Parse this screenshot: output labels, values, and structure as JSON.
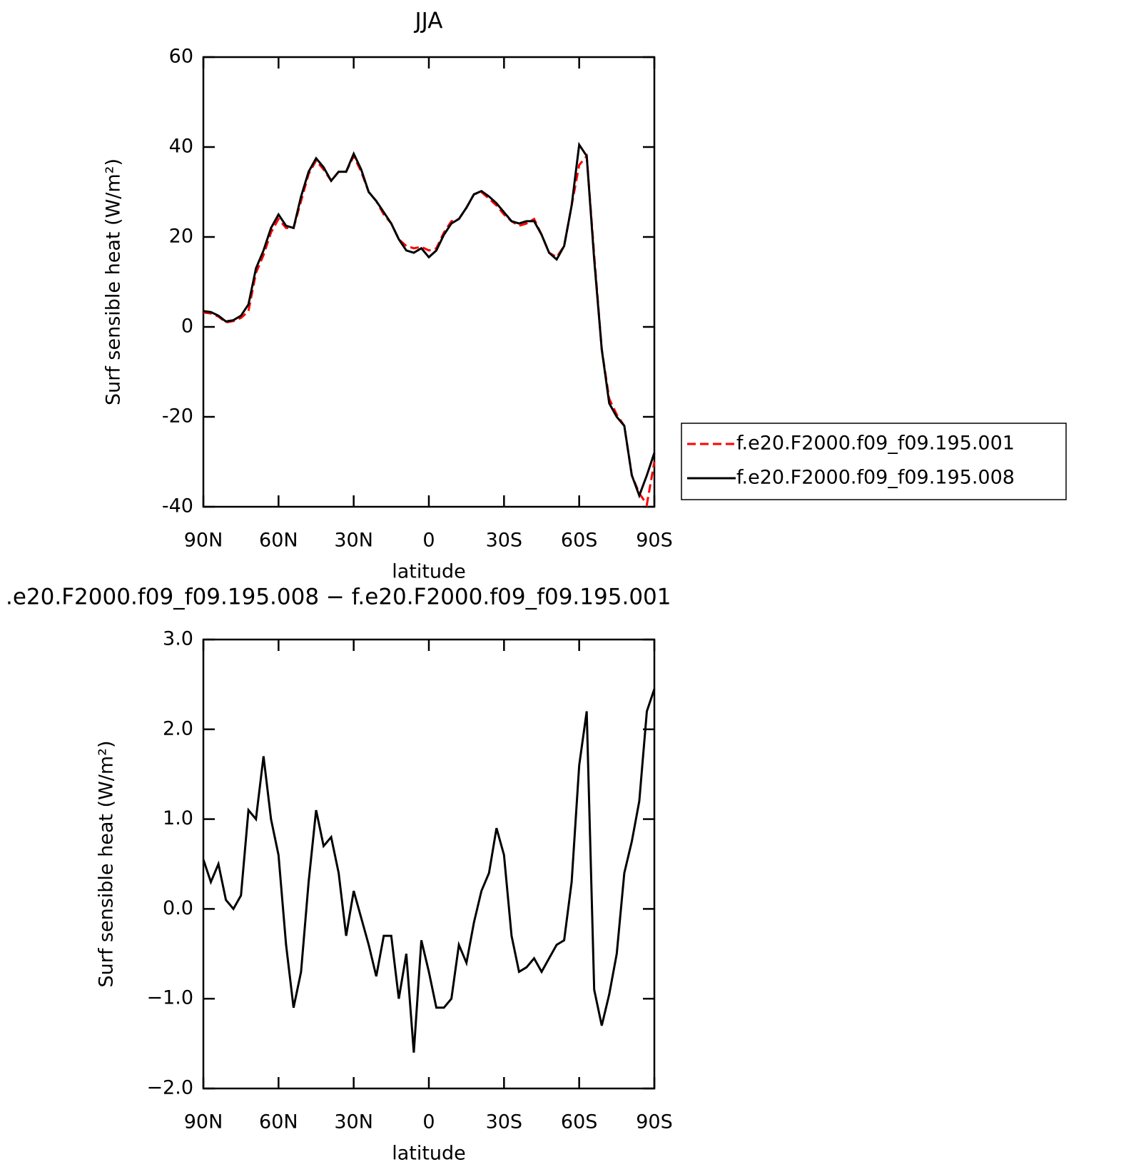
{
  "chart_data": [
    {
      "type": "line",
      "title": "JJA",
      "x_label": "latitude",
      "y_label": "Surf sensible heat (W/m²)",
      "x": [
        90,
        87,
        84,
        81,
        78,
        75,
        72,
        69,
        66,
        63,
        60,
        57,
        54,
        51,
        48,
        45,
        42,
        39,
        36,
        33,
        30,
        27,
        24,
        21,
        18,
        15,
        12,
        9,
        6,
        3,
        0,
        -3,
        -6,
        -9,
        -12,
        -15,
        -18,
        -21,
        -24,
        -27,
        -30,
        -33,
        -36,
        -39,
        -42,
        -45,
        -48,
        -51,
        -54,
        -57,
        -60,
        -63,
        -66,
        -69,
        -72,
        -75,
        -78,
        -81,
        -84,
        -87,
        -90
      ],
      "xlim": [
        90,
        -90
      ],
      "xticks": [
        {
          "value": 90,
          "label": "90N"
        },
        {
          "value": 60,
          "label": "60N"
        },
        {
          "value": 30,
          "label": "30N"
        },
        0,
        {
          "value": -30,
          "label": "30S"
        },
        {
          "value": -60,
          "label": "60S"
        },
        {
          "value": -90,
          "label": "90S"
        }
      ],
      "ylim": [
        -40,
        60
      ],
      "yticks": [
        -40,
        -20,
        0,
        20,
        40,
        60
      ],
      "legend": "right",
      "series": [
        {
          "name": "f.e20.F2000.f09_f09.195.001",
          "color": "#ff0000",
          "dash": true,
          "values": [
            3.2,
            3.0,
            2.3,
            1.0,
            1.3,
            2.0,
            3.5,
            12,
            16,
            21,
            24,
            22,
            22,
            28,
            34,
            37,
            35,
            32.5,
            34.5,
            34.5,
            38,
            34.5,
            30,
            28,
            25,
            23,
            19.5,
            18,
            17.5,
            17.8,
            17,
            17.5,
            21,
            23.5,
            24,
            26.5,
            29.5,
            30,
            28.5,
            27,
            25,
            23.5,
            22.5,
            23,
            24,
            20.5,
            16.5,
            15.5,
            18,
            27,
            36,
            38,
            16,
            -5,
            -16,
            -19.5,
            -22,
            -33,
            -37,
            -39.5,
            -30
          ]
        },
        {
          "name": "f.e20.F2000.f09_f09.195.008",
          "color": "#000000",
          "dash": false,
          "values": [
            3.5,
            3.3,
            2.5,
            1.2,
            1.5,
            2.5,
            5,
            13,
            17,
            22,
            25,
            22.5,
            22,
            29,
            34.5,
            37.5,
            35.5,
            32.5,
            34.5,
            34.5,
            38.5,
            35,
            30,
            28,
            25.5,
            23,
            19.5,
            17,
            16.5,
            17.5,
            15.5,
            17,
            20.5,
            23,
            24,
            26.5,
            29.5,
            30.2,
            29,
            27.5,
            25.5,
            23.5,
            23,
            23.5,
            23.5,
            20.5,
            16.5,
            15,
            18,
            27,
            40.5,
            38,
            15,
            -5,
            -17,
            -20,
            -22,
            -33,
            -37.5,
            -33,
            -28
          ]
        }
      ]
    },
    {
      "type": "line",
      "title": ".e20.F2000.f09_f09.195.008 − f.e20.F2000.f09_f09.195.001",
      "x_label": "latitude",
      "y_label": "Surf sensible heat (W/m²)",
      "x": [
        90,
        87,
        84,
        81,
        78,
        75,
        72,
        69,
        66,
        63,
        60,
        57,
        54,
        51,
        48,
        45,
        42,
        39,
        36,
        33,
        30,
        27,
        24,
        21,
        18,
        15,
        12,
        9,
        6,
        3,
        0,
        -3,
        -6,
        -9,
        -12,
        -15,
        -18,
        -21,
        -24,
        -27,
        -30,
        -33,
        -36,
        -39,
        -42,
        -45,
        -48,
        -51,
        -54,
        -57,
        -60,
        -63,
        -66,
        -69,
        -72,
        -75,
        -78,
        -81,
        -84,
        -87,
        -90
      ],
      "xlim": [
        90,
        -90
      ],
      "xticks": [
        {
          "value": 90,
          "label": "90N"
        },
        {
          "value": 60,
          "label": "60N"
        },
        {
          "value": 30,
          "label": "30N"
        },
        0,
        {
          "value": -30,
          "label": "30S"
        },
        {
          "value": -60,
          "label": "60S"
        },
        {
          "value": -90,
          "label": "90S"
        }
      ],
      "ylim": [
        -2,
        3
      ],
      "yticks": [
        {
          "value": -2,
          "label": "−2.0"
        },
        {
          "value": -1,
          "label": "−1.0"
        },
        {
          "value": 0,
          "label": "0.0"
        },
        {
          "value": 1,
          "label": "1.0"
        },
        {
          "value": 2,
          "label": "2.0"
        },
        {
          "value": 3,
          "label": "3.0"
        }
      ],
      "series": [
        {
          "color": "#000000",
          "dash": false,
          "values": [
            0.55,
            0.3,
            0.5,
            0.1,
            0.0,
            0.15,
            1.1,
            1.0,
            1.7,
            1.0,
            0.6,
            -0.4,
            -1.1,
            -0.7,
            0.3,
            1.1,
            0.7,
            0.8,
            0.4,
            -0.3,
            0.2,
            -0.1,
            -0.4,
            -0.75,
            -0.3,
            -0.3,
            -1.0,
            -0.5,
            -1.6,
            -0.35,
            -0.7,
            -1.1,
            -1.1,
            -1.0,
            -0.4,
            -0.6,
            -0.15,
            0.2,
            0.4,
            0.9,
            0.6,
            -0.3,
            -0.7,
            -0.65,
            -0.55,
            -0.7,
            -0.55,
            -0.4,
            -0.35,
            0.3,
            1.6,
            2.2,
            -0.9,
            -1.3,
            -0.95,
            -0.5,
            0.4,
            0.75,
            1.2,
            2.2,
            2.45
          ]
        }
      ]
    }
  ]
}
